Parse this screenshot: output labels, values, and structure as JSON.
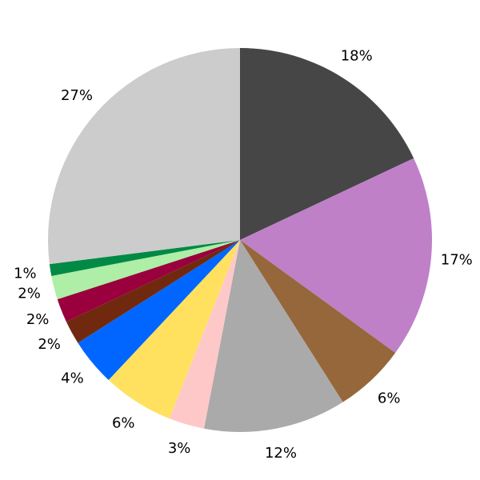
{
  "chart_data": {
    "type": "pie",
    "values": [
      18,
      17,
      6,
      12,
      3,
      6,
      4,
      2,
      2,
      2,
      1,
      27
    ],
    "value_labels": [
      "18%",
      "17%",
      "6%",
      "12%",
      "3%",
      "6%",
      "4%",
      "2%",
      "2%",
      "2%",
      "1%",
      "27%"
    ],
    "colors": [
      "#464646",
      "#bf80c8",
      "#96673a",
      "#aaaaaa",
      "#ffc8c8",
      "#ffe15f",
      "#0066ff",
      "#70290e",
      "#99003d",
      "#aeeea6",
      "#008a45",
      "#cccccc"
    ]
  }
}
